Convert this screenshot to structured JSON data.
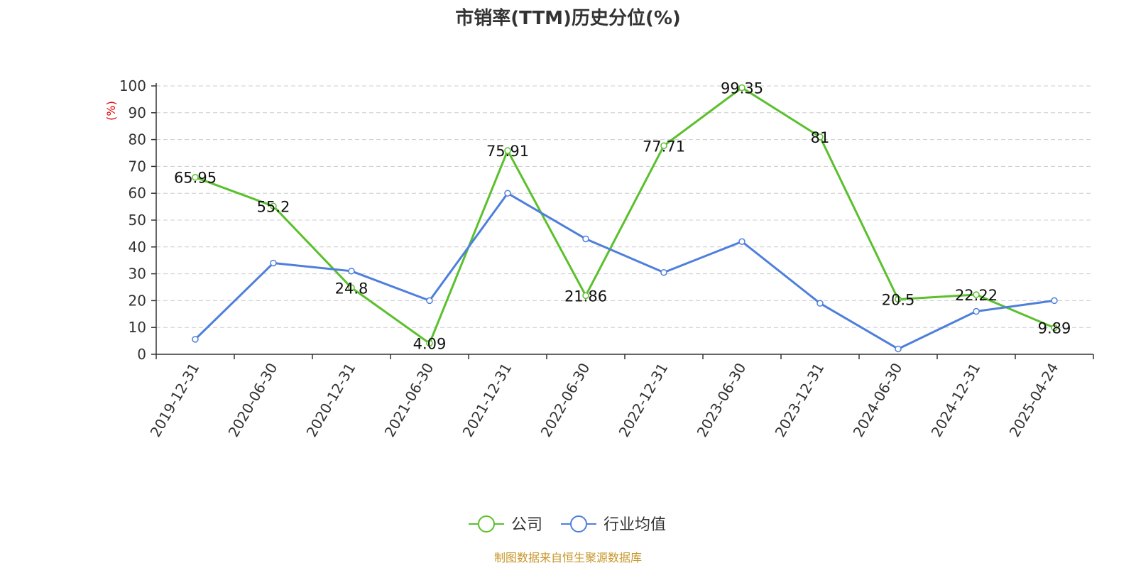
{
  "chart_data": {
    "type": "line",
    "title": "市销率(TTM)历史分位(%)",
    "ylabel": "(%)",
    "ylim": [
      0,
      100
    ],
    "yticks": [
      0,
      10,
      20,
      30,
      40,
      50,
      60,
      70,
      80,
      90,
      100
    ],
    "categories": [
      "2019-12-31",
      "2020-06-30",
      "2020-12-31",
      "2021-06-30",
      "2021-12-31",
      "2022-06-30",
      "2022-12-31",
      "2023-06-30",
      "2023-12-31",
      "2024-06-30",
      "2024-12-31",
      "2025-04-24"
    ],
    "series": [
      {
        "name": "公司",
        "color": "#5ac02c",
        "values": [
          65.95,
          55.2,
          24.8,
          4.09,
          75.91,
          21.86,
          77.71,
          99.35,
          81,
          20.5,
          22.22,
          9.89
        ],
        "labels": [
          "65.95",
          "55.2",
          "24.8",
          "4.09",
          "75.91",
          "21.86",
          "77.71",
          "99.35",
          "81",
          "20.5",
          "22.22",
          "9.89"
        ]
      },
      {
        "name": "行业均值",
        "color": "#4e7fdc",
        "values": [
          5.6,
          34,
          31,
          20,
          60,
          43,
          30.5,
          42,
          19,
          2,
          16,
          20
        ]
      }
    ],
    "grid": true,
    "legend_position": "bottom-center"
  },
  "source": "制图数据来自恒生聚源数据库"
}
